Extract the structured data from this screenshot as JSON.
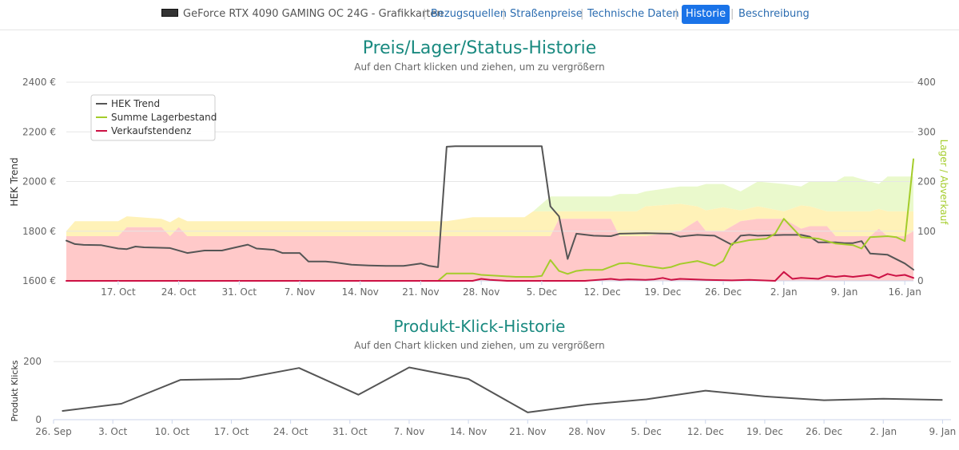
{
  "nav": {
    "product": "GeForce RTX 4090 GAMING OC 24G - Grafikkarten",
    "links": [
      "Bezugsquellen",
      "Straßenpreise",
      "Technische Daten",
      "Historie",
      "Beschreibung"
    ],
    "active": "Historie"
  },
  "colors": {
    "title": "#1a8a80",
    "hek": "#555555",
    "lager": "#a4cc2a",
    "verkauf": "#cc1144",
    "band_red": "#ffc9c9",
    "band_yellow": "#fff2b8",
    "band_green": "#eaf9cc",
    "clicks": "#555555"
  },
  "chart_data": [
    {
      "type": "line",
      "title": "Preis/Lager/Status-Historie",
      "subtitle": "Auf den Chart klicken und ziehen, um zu vergrößern",
      "ylabel": "HEK Trend",
      "ylabel_right": "Lager / Abverkauf",
      "ylim": [
        1600,
        2400
      ],
      "ylim_right": [
        0,
        400
      ],
      "yticks": [
        "1600 €",
        "1800 €",
        "2000 €",
        "2200 €",
        "2400 €"
      ],
      "yticks_right": [
        "0",
        "100",
        "200",
        "300",
        "400"
      ],
      "xlim": [
        "2022-10-11",
        "2023-01-17"
      ],
      "xticks": [
        "17. Oct",
        "24. Oct",
        "31. Oct",
        "7. Nov",
        "14. Nov",
        "21. Nov",
        "28. Nov",
        "5. Dec",
        "12. Dec",
        "19. Dec",
        "26. Dec",
        "2. Jan",
        "9. Jan",
        "16. Jan"
      ],
      "legend": "top-left",
      "grid": true,
      "series": [
        {
          "name": "HEK Trend",
          "axis": "left",
          "x": [
            "2022-10-11",
            "2022-10-12",
            "2022-10-13",
            "2022-10-15",
            "2022-10-17",
            "2022-10-18",
            "2022-10-19",
            "2022-10-20",
            "2022-10-21",
            "2022-10-23",
            "2022-10-25",
            "2022-10-27",
            "2022-10-28",
            "2022-10-29",
            "2022-10-30",
            "2022-11-01",
            "2022-11-02",
            "2022-11-03",
            "2022-11-04",
            "2022-11-05",
            "2022-11-07",
            "2022-11-08",
            "2022-11-09",
            "2022-11-10",
            "2022-11-11",
            "2022-11-12",
            "2022-11-13",
            "2022-11-15",
            "2022-11-17",
            "2022-11-19",
            "2022-11-21",
            "2022-11-22",
            "2022-11-23",
            "2022-11-24",
            "2022-11-25",
            "2022-11-28",
            "2022-12-01",
            "2022-12-03",
            "2022-12-04",
            "2022-12-05",
            "2022-12-06",
            "2022-12-07",
            "2022-12-08",
            "2022-12-09",
            "2022-12-11",
            "2022-12-13",
            "2022-12-14",
            "2022-12-17",
            "2022-12-20",
            "2022-12-21",
            "2022-12-22",
            "2022-12-23",
            "2022-12-25",
            "2022-12-27",
            "2022-12-28",
            "2022-12-29",
            "2022-12-30",
            "2023-01-02",
            "2023-01-04",
            "2023-01-05",
            "2023-01-06",
            "2023-01-08",
            "2023-01-09",
            "2023-01-10",
            "2023-01-11",
            "2023-01-12",
            "2023-01-14",
            "2023-01-16",
            "2023-01-17"
          ],
          "values": [
            1762,
            1748,
            1745,
            1744,
            1730,
            1728,
            1738,
            1735,
            1734,
            1732,
            1712,
            1722,
            1722,
            1722,
            1730,
            1746,
            1730,
            1728,
            1725,
            1712,
            1712,
            1678,
            1678,
            1678,
            1675,
            1670,
            1665,
            1662,
            1660,
            1660,
            1670,
            1660,
            1655,
            2140,
            2142,
            2142,
            2142,
            2142,
            2142,
            2142,
            1900,
            1860,
            1688,
            1790,
            1782,
            1780,
            1790,
            1792,
            1790,
            1778,
            1782,
            1785,
            1782,
            1745,
            1782,
            1785,
            1782,
            1785,
            1785,
            1778,
            1755,
            1755,
            1752,
            1752,
            1760,
            1710,
            1705,
            1670,
            1645
          ]
        },
        {
          "name": "Summe Lagerbestand",
          "axis": "right",
          "x": [
            "2022-11-23",
            "2022-11-24",
            "2022-11-27",
            "2022-11-28",
            "2022-11-30",
            "2022-12-02",
            "2022-12-04",
            "2022-12-05",
            "2022-12-06",
            "2022-12-07",
            "2022-12-08",
            "2022-12-09",
            "2022-12-10",
            "2022-12-12",
            "2022-12-14",
            "2022-12-15",
            "2022-12-17",
            "2022-12-19",
            "2022-12-20",
            "2022-12-21",
            "2022-12-23",
            "2022-12-25",
            "2022-12-26",
            "2022-12-27",
            "2022-12-29",
            "2022-12-31",
            "2023-01-01",
            "2023-01-02",
            "2023-01-04",
            "2023-01-06",
            "2023-01-08",
            "2023-01-10",
            "2023-01-11",
            "2023-01-12",
            "2023-01-14",
            "2023-01-15",
            "2023-01-16",
            "2023-01-17"
          ],
          "values": [
            0,
            15,
            15,
            12,
            10,
            8,
            8,
            10,
            42,
            20,
            14,
            20,
            22,
            22,
            35,
            36,
            30,
            25,
            28,
            34,
            40,
            30,
            40,
            75,
            82,
            85,
            95,
            125,
            88,
            85,
            75,
            72,
            65,
            88,
            90,
            88,
            80,
            245
          ]
        },
        {
          "name": "Verkaufstendenz",
          "axis": "right",
          "x": [
            "2022-10-11",
            "2022-11-27",
            "2022-11-28",
            "2022-11-29",
            "2022-12-01",
            "2022-12-04",
            "2022-12-06",
            "2022-12-10",
            "2022-12-13",
            "2022-12-14",
            "2022-12-15",
            "2022-12-17",
            "2022-12-18",
            "2022-12-19",
            "2022-12-20",
            "2022-12-21",
            "2022-12-24",
            "2022-12-27",
            "2022-12-29",
            "2023-01-01",
            "2023-01-02",
            "2023-01-03",
            "2023-01-04",
            "2023-01-06",
            "2023-01-07",
            "2023-01-08",
            "2023-01-09",
            "2023-01-10",
            "2023-01-12",
            "2023-01-13",
            "2023-01-14",
            "2023-01-15",
            "2023-01-16",
            "2023-01-17"
          ],
          "values": [
            0,
            0,
            4,
            2,
            0,
            0,
            0,
            0,
            4,
            2,
            3,
            2,
            3,
            6,
            2,
            4,
            2,
            1,
            2,
            0,
            18,
            4,
            6,
            4,
            10,
            8,
            10,
            8,
            12,
            6,
            14,
            10,
            12,
            6
          ]
        }
      ],
      "bands": {
        "x": [
          "2022-10-11",
          "2022-10-12",
          "2022-10-17",
          "2022-10-18",
          "2022-10-22",
          "2022-10-23",
          "2022-10-24",
          "2022-10-25",
          "2022-11-14",
          "2022-11-21",
          "2022-11-24",
          "2022-11-27",
          "2022-12-03",
          "2022-12-04",
          "2022-12-06",
          "2022-12-07",
          "2022-12-13",
          "2022-12-14",
          "2022-12-16",
          "2022-12-17",
          "2022-12-21",
          "2022-12-23",
          "2022-12-24",
          "2022-12-26",
          "2022-12-28",
          "2022-12-30",
          "2023-01-02",
          "2023-01-04",
          "2023-01-05",
          "2023-01-07",
          "2023-01-08",
          "2023-01-09",
          "2023-01-10",
          "2023-01-12",
          "2023-01-13",
          "2023-01-14",
          "2023-01-16",
          "2023-01-17"
        ],
        "red_top": [
          90,
          90,
          90,
          108,
          108,
          90,
          108,
          90,
          90,
          90,
          90,
          90,
          90,
          90,
          90,
          125,
          125,
          90,
          90,
          90,
          100,
          122,
          100,
          100,
          120,
          125,
          125,
          105,
          110,
          110,
          90,
          90,
          90,
          90,
          105,
          90,
          90,
          100
        ],
        "yellow_top": [
          100,
          120,
          120,
          130,
          125,
          118,
          128,
          120,
          120,
          120,
          120,
          128,
          128,
          140,
          140,
          140,
          140,
          140,
          140,
          150,
          155,
          150,
          142,
          148,
          142,
          150,
          140,
          152,
          150,
          140,
          140,
          140,
          140,
          140,
          145,
          140,
          140,
          140
        ],
        "green_top": [
          0,
          0,
          0,
          0,
          0,
          0,
          0,
          0,
          0,
          0,
          0,
          0,
          0,
          0,
          170,
          170,
          170,
          175,
          175,
          180,
          190,
          190,
          195,
          195,
          180,
          200,
          195,
          190,
          200,
          200,
          200,
          210,
          210,
          200,
          195,
          210,
          210,
          210
        ]
      }
    },
    {
      "type": "line",
      "title": "Produkt-Klick-Historie",
      "subtitle": "Auf den Chart klicken und ziehen, um zu vergrößern",
      "ylabel": "Produkt Klicks",
      "ylim": [
        0,
        250
      ],
      "yticks": [
        "0",
        "200"
      ],
      "xlim": [
        "2022-09-26",
        "2023-01-10"
      ],
      "xticks": [
        "26. Sep",
        "3. Oct",
        "10. Oct",
        "17. Oct",
        "24. Oct",
        "31. Oct",
        "7. Nov",
        "14. Nov",
        "21. Nov",
        "28. Nov",
        "5. Dec",
        "12. Dec",
        "19. Dec",
        "26. Dec",
        "2. Jan",
        "9. Jan"
      ],
      "grid": true,
      "series": [
        {
          "x": [
            "2022-09-27",
            "2022-10-04",
            "2022-10-11",
            "2022-10-18",
            "2022-10-25",
            "2022-11-01",
            "2022-11-07",
            "2022-11-14",
            "2022-11-21",
            "2022-11-28",
            "2022-12-05",
            "2022-12-12",
            "2022-12-19",
            "2022-12-26",
            "2023-01-02",
            "2023-01-09"
          ],
          "values": [
            30,
            55,
            137,
            140,
            178,
            86,
            180,
            140,
            25,
            52,
            70,
            100,
            80,
            67,
            72,
            68
          ]
        }
      ]
    }
  ]
}
